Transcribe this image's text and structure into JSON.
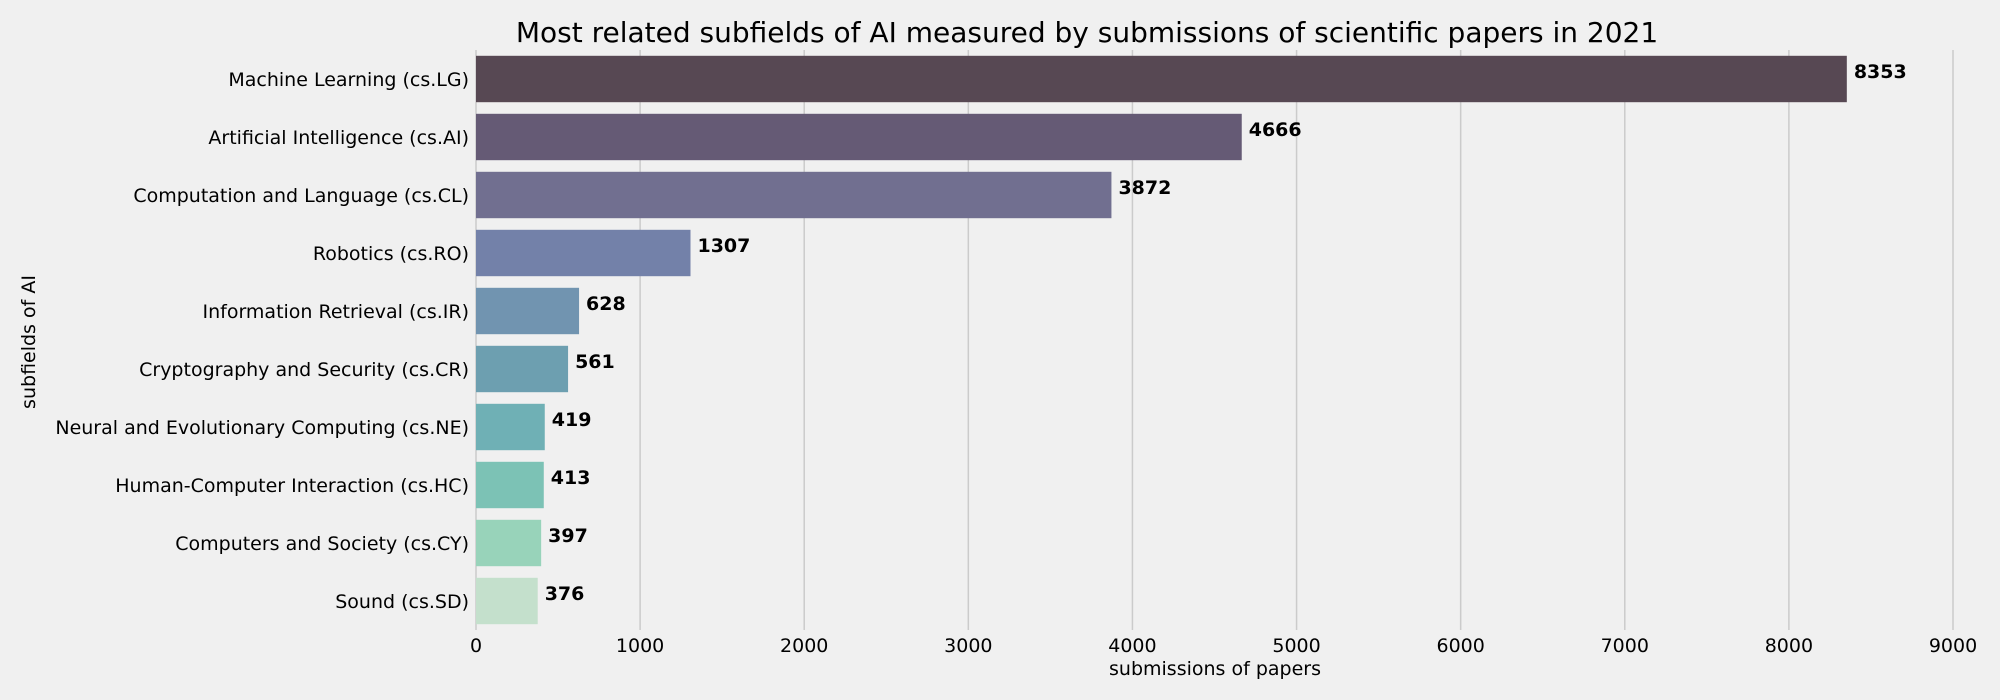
{
  "chart_data": {
    "type": "bar",
    "orientation": "horizontal",
    "title": "Most related subfields of AI measured by submissions of scientific papers in 2021",
    "xlabel": "submissions of papers",
    "ylabel": "subfields of AI",
    "xlim": [
      0,
      9000
    ],
    "xticks": [
      "0",
      "1000",
      "2000",
      "3000",
      "4000",
      "5000",
      "6000",
      "7000",
      "8000",
      "9000"
    ],
    "grid": "vertical",
    "categories": [
      "Machine Learning (cs.LG)",
      "Artificial Intelligence (cs.AI)",
      "Computation and Language (cs.CL)",
      "Robotics (cs.RO)",
      "Information Retrieval (cs.IR)",
      "Cryptography and Security (cs.CR)",
      "Neural and Evolutionary Computing (cs.NE)",
      "Human-Computer Interaction (cs.HC)",
      "Computers and Society (cs.CY)",
      "Sound (cs.SD)"
    ],
    "values": [
      8353,
      4666,
      3872,
      1307,
      628,
      561,
      419,
      413,
      397,
      376
    ],
    "value_labels": [
      "8353",
      "4666",
      "3872",
      "1307",
      "628",
      "561",
      "419",
      "413",
      "397",
      "376"
    ],
    "colors": [
      "#574853",
      "#655a75",
      "#716f90",
      "#7381a9",
      "#7194b0",
      "#6d9fb0",
      "#6fb0b5",
      "#7cc2b5",
      "#98d3ba",
      "#c4e0cc"
    ]
  }
}
